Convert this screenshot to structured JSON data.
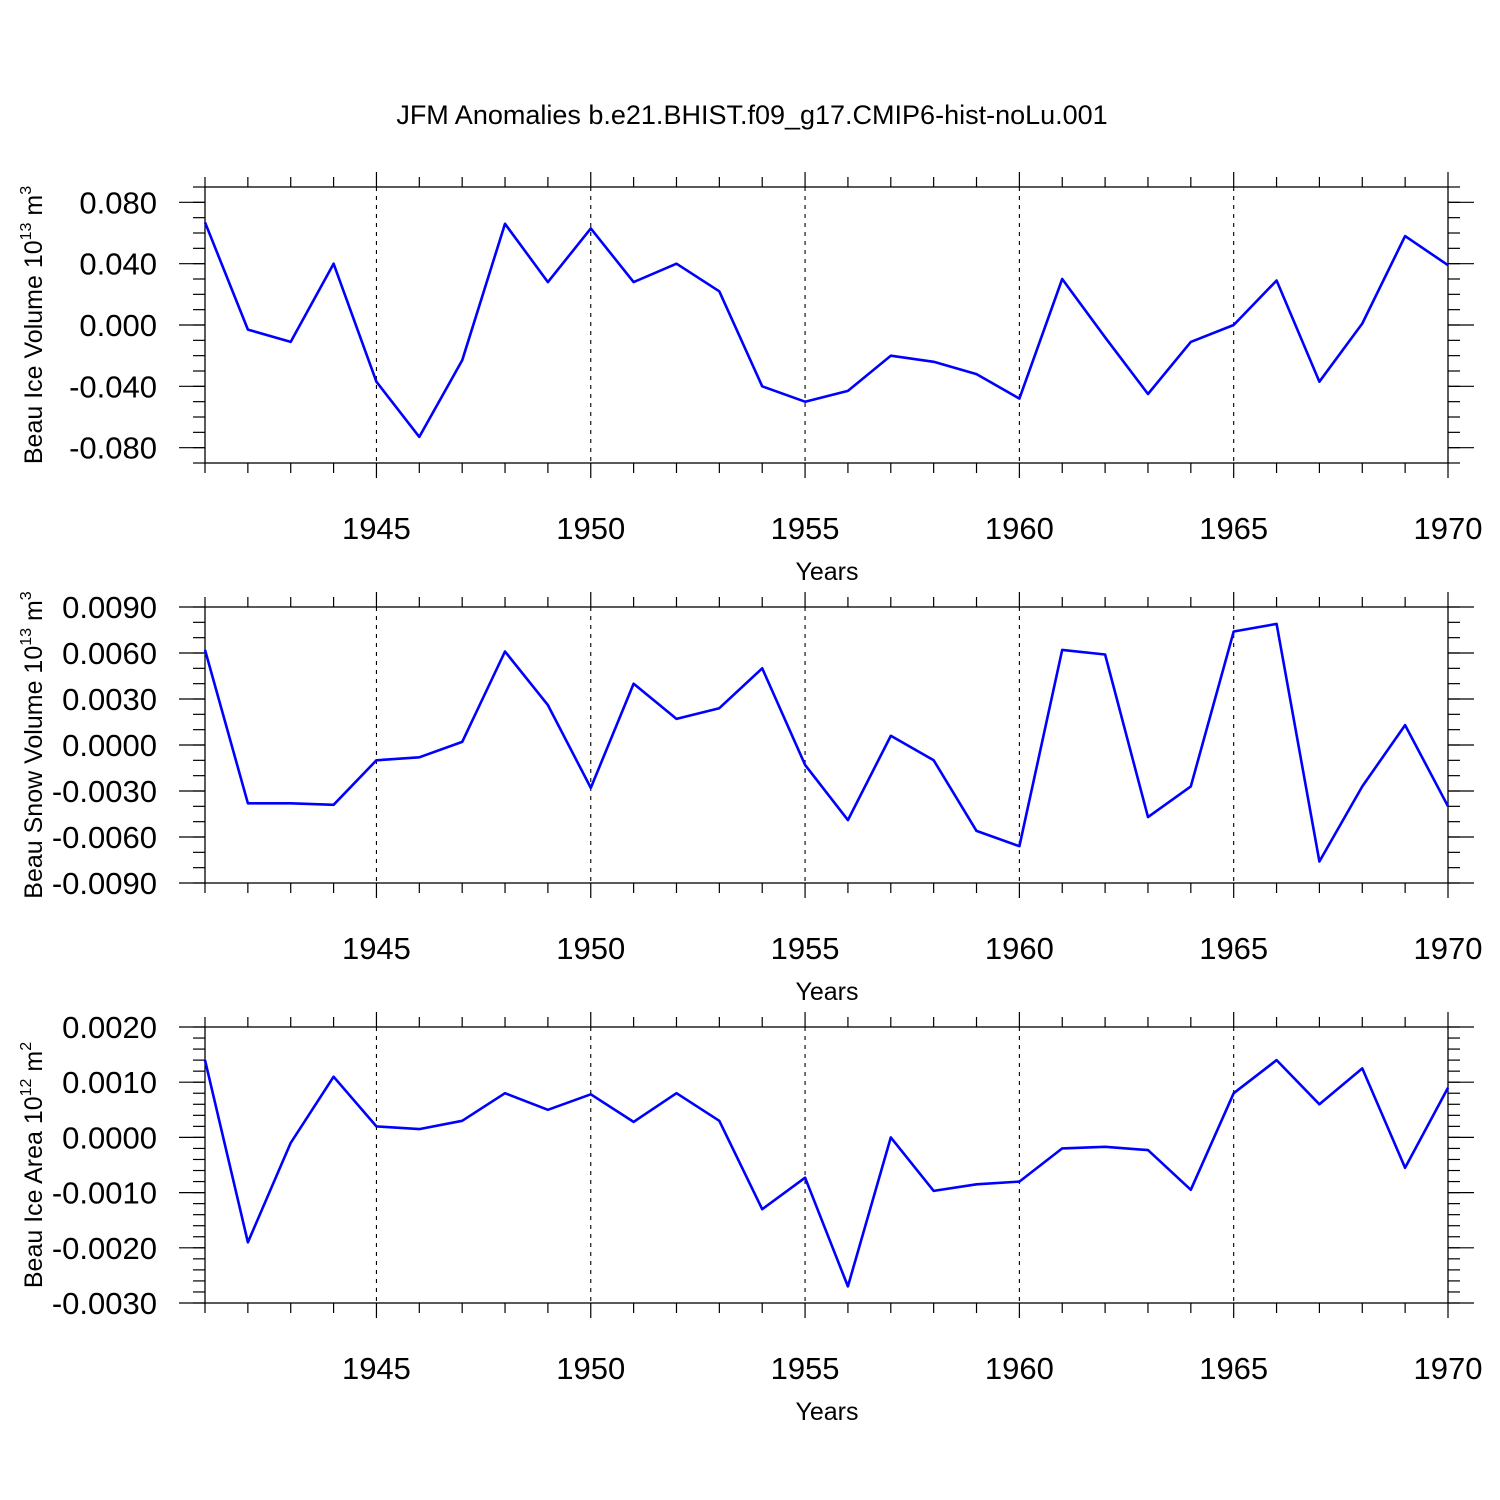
{
  "chart_data": {
    "title": "JFM Anomalies b.e21.BHIST.f09_g17.CMIP6-hist-noLu.001",
    "years": [
      1941,
      1942,
      1943,
      1944,
      1945,
      1946,
      1947,
      1948,
      1949,
      1950,
      1951,
      1952,
      1953,
      1954,
      1955,
      1956,
      1957,
      1958,
      1959,
      1960,
      1961,
      1962,
      1963,
      1964,
      1965,
      1966,
      1967,
      1968,
      1969,
      1970
    ],
    "xlim": [
      1941,
      1970
    ],
    "xticks": [
      1945,
      1950,
      1955,
      1960,
      1965,
      1970
    ],
    "xtick_labels": [
      "1945",
      "1950",
      "1955",
      "1960",
      "1965",
      "1970"
    ],
    "panels": [
      {
        "type": "line",
        "xlabel": "Years",
        "ylabel": "Beau Ice Volume 10",
        "ylabel_exp": "13",
        "ylabel_unit": " m",
        "ylabel_unit_exp": "3",
        "ylim": [
          -0.09,
          0.09
        ],
        "yticks": [
          -0.08,
          -0.04,
          0.0,
          0.04,
          0.08
        ],
        "ytick_labels": [
          "-0.080",
          "-0.040",
          "0.000",
          "0.040",
          "0.080"
        ],
        "minor_step": 0.01,
        "color": "#0000ff",
        "values": [
          0.067,
          -0.003,
          -0.011,
          0.04,
          -0.037,
          -0.073,
          -0.023,
          0.066,
          0.028,
          0.063,
          0.028,
          0.04,
          0.022,
          -0.04,
          -0.05,
          -0.043,
          -0.02,
          -0.024,
          -0.032,
          -0.048,
          0.03,
          -0.008,
          -0.045,
          -0.011,
          0.0,
          0.029,
          -0.037,
          0.001,
          0.058,
          0.039
        ]
      },
      {
        "type": "line",
        "xlabel": "Years",
        "ylabel": "Beau Snow Volume 10",
        "ylabel_exp": "13",
        "ylabel_unit": " m",
        "ylabel_unit_exp": "3",
        "ylim": [
          -0.009,
          0.009
        ],
        "yticks": [
          -0.009,
          -0.006,
          -0.003,
          0.0,
          0.003,
          0.006,
          0.009
        ],
        "ytick_labels": [
          "-0.0090",
          "-0.0060",
          "-0.0030",
          "0.0000",
          "0.0030",
          "0.0060",
          "0.0090"
        ],
        "minor_step": 0.001,
        "color": "#0000ff",
        "values": [
          0.0062,
          -0.0038,
          -0.0038,
          -0.0039,
          -0.001,
          -0.0008,
          0.0002,
          0.0061,
          0.0026,
          -0.0028,
          0.004,
          0.0017,
          0.0024,
          0.005,
          -0.0013,
          -0.0049,
          0.0006,
          -0.001,
          -0.0056,
          -0.0066,
          0.0062,
          0.0059,
          -0.0047,
          -0.0027,
          0.0074,
          0.0079,
          -0.0076,
          -0.0027,
          0.0013,
          -0.004
        ]
      },
      {
        "type": "line",
        "xlabel": "Years",
        "ylabel": "Beau Ice Area 10",
        "ylabel_exp": "12",
        "ylabel_unit": " m",
        "ylabel_unit_exp": "2",
        "ylim": [
          -0.003,
          0.002
        ],
        "yticks": [
          -0.003,
          -0.002,
          -0.001,
          0.0,
          0.001,
          0.002
        ],
        "ytick_labels": [
          "-0.0030",
          "-0.0020",
          "-0.0010",
          "0.0000",
          "0.0010",
          "0.0020"
        ],
        "minor_step": 0.0002,
        "color": "#0000ff",
        "values": [
          0.0014,
          -0.0019,
          -0.0001,
          0.0011,
          0.0002,
          0.00015,
          0.0003,
          0.0008,
          0.0005,
          0.00078,
          0.00028,
          0.0008,
          0.0003,
          -0.0013,
          -0.00073,
          -0.0027,
          0.0,
          -0.00097,
          -0.00085,
          -0.0008,
          -0.0002,
          -0.00017,
          -0.00023,
          -0.00095,
          0.0008,
          0.0014,
          0.0006,
          0.00125,
          -0.00055,
          0.0009
        ]
      }
    ]
  }
}
